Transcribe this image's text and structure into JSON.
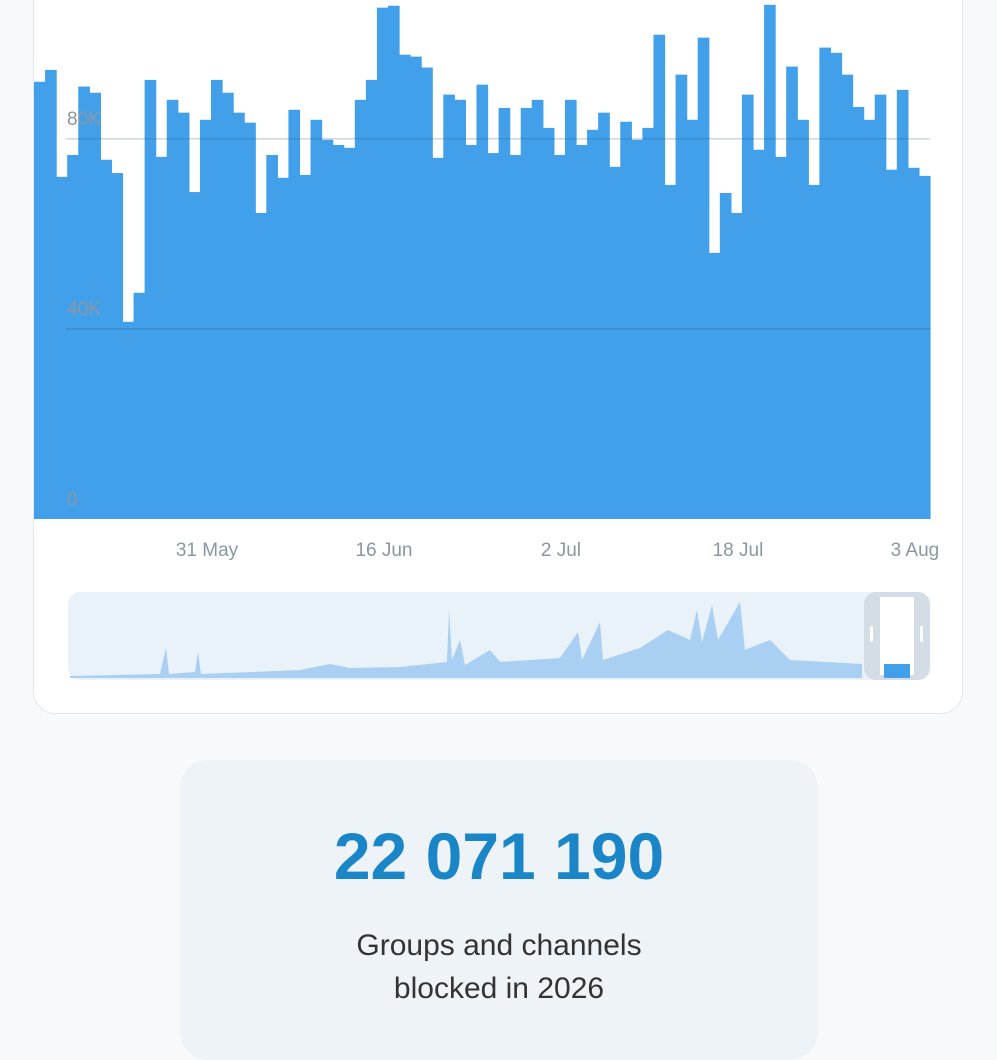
{
  "chart_data": {
    "type": "bar",
    "categories": [
      null,
      null,
      null,
      null,
      null,
      null,
      null,
      null,
      null,
      null,
      null,
      null,
      null,
      null,
      null,
      null,
      "31 May",
      null,
      null,
      null,
      null,
      null,
      null,
      null,
      null,
      null,
      null,
      null,
      null,
      null,
      null,
      null,
      "16 Jun",
      null,
      null,
      null,
      null,
      null,
      null,
      null,
      null,
      null,
      null,
      null,
      null,
      null,
      null,
      null,
      "2 Jul",
      null,
      null,
      null,
      null,
      null,
      null,
      null,
      null,
      null,
      null,
      null,
      null,
      null,
      null,
      null,
      "18 Jul",
      null,
      null,
      null,
      null,
      null,
      null,
      null,
      null,
      null,
      null,
      null,
      null,
      null,
      null,
      null,
      "3 Aug"
    ],
    "values": [
      92000,
      94500,
      72000,
      76600,
      91000,
      89700,
      75600,
      72800,
      41500,
      47600,
      92400,
      76200,
      88200,
      85500,
      68800,
      84000,
      92400,
      89700,
      85500,
      83400,
      64400,
      76600,
      71800,
      86100,
      72400,
      84000,
      79800,
      78700,
      78100,
      88200,
      92400,
      107600,
      108000,
      97700,
      97300,
      95000,
      76000,
      89300,
      88200,
      78700,
      91400,
      77000,
      86500,
      76600,
      86500,
      88200,
      82300,
      76600,
      88200,
      78700,
      81900,
      85500,
      74100,
      83600,
      79800,
      82300,
      101900,
      70300,
      93500,
      84000,
      101300,
      56000,
      68600,
      64400,
      89300,
      77700,
      108200,
      76200,
      95200,
      84000,
      70300,
      99200,
      98100,
      93500,
      86700,
      84000,
      89300,
      73500,
      90300,
      73900,
      72200
    ],
    "color": "#42a0ea",
    "ylim": [
      0,
      109000
    ],
    "yticks": [
      0,
      {
        "value": 40000,
        "label": "40K"
      },
      {
        "value": 80000,
        "label": "80K"
      }
    ],
    "grid": true
  },
  "stat": {
    "value": "22 071 190",
    "caption": [
      "Groups and channels",
      "blocked in 2026"
    ]
  }
}
